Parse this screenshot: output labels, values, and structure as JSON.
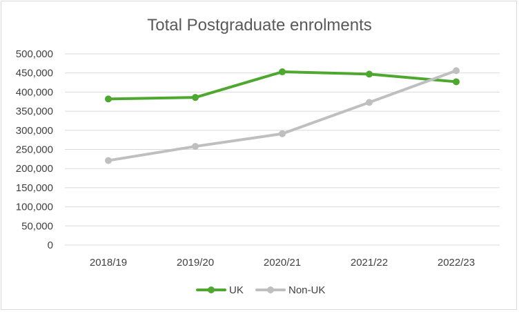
{
  "chart_data": {
    "type": "line",
    "title": "Total Postgraduate enrolments",
    "categories": [
      "2018/19",
      "2019/20",
      "2020/21",
      "2021/22",
      "2022/23"
    ],
    "ylim": [
      0,
      500000
    ],
    "yticks": [
      0,
      50000,
      100000,
      150000,
      200000,
      250000,
      300000,
      350000,
      400000,
      450000,
      500000
    ],
    "ytick_labels": [
      "0",
      "50,000",
      "100,000",
      "150,000",
      "200,000",
      "250,000",
      "300,000",
      "350,000",
      "400,000",
      "450,000",
      "500,000"
    ],
    "grid": true,
    "legend_position": "bottom",
    "series": [
      {
        "name": "UK",
        "color": "#4ea72e",
        "values": [
          382000,
          386000,
          453000,
          447000,
          427000
        ]
      },
      {
        "name": "Non-UK",
        "color": "#bfbfbf",
        "values": [
          221000,
          258000,
          291000,
          373000,
          456000
        ]
      }
    ]
  }
}
